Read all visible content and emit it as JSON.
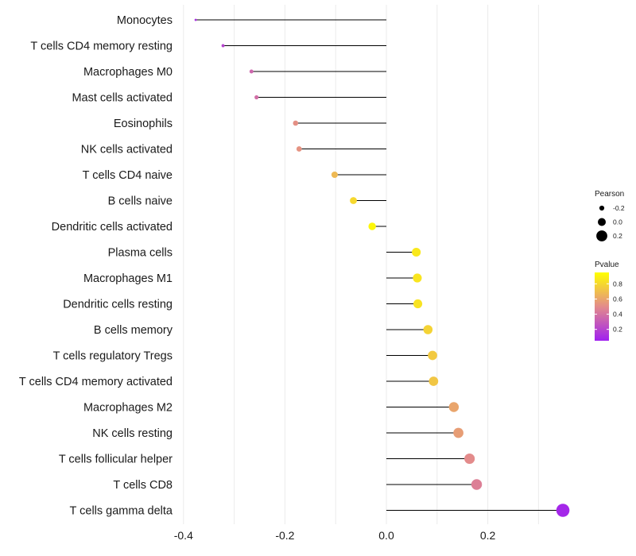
{
  "chart_data": {
    "type": "lollipop",
    "title": "",
    "xlabel": "",
    "ylabel": "",
    "xlim": [
      -0.4,
      0.35
    ],
    "xticks": [
      "-0.4",
      "-0.2",
      "0.0",
      "0.2"
    ],
    "xtick_values": [
      -0.4,
      -0.2,
      0.0,
      0.2
    ],
    "categories": [
      "Monocytes",
      "T cells CD4 memory resting",
      "Macrophages M0",
      "Mast cells activated",
      "Eosinophils",
      "NK cells activated",
      "T cells CD4 naive",
      "B cells naive",
      "Dendritic cells activated",
      "Plasma cells",
      "Macrophages M1",
      "Dendritic cells resting",
      "B cells memory",
      "T cells regulatory  Tregs",
      "T cells CD4 memory activated",
      "Macrophages M2",
      "NK cells resting",
      "T cells follicular helper",
      "T cells CD8",
      "T cells gamma delta"
    ],
    "pearson": [
      -0.376,
      -0.322,
      -0.266,
      -0.256,
      -0.179,
      -0.172,
      -0.102,
      -0.065,
      -0.028,
      0.059,
      0.061,
      0.062,
      0.082,
      0.091,
      0.093,
      0.133,
      0.142,
      0.164,
      0.178,
      0.348
    ],
    "pvalue": [
      0.12,
      0.2,
      0.35,
      0.38,
      0.52,
      0.53,
      0.68,
      0.8,
      0.92,
      0.86,
      0.85,
      0.84,
      0.78,
      0.74,
      0.73,
      0.6,
      0.57,
      0.5,
      0.45,
      0.08
    ],
    "legend_size": {
      "title": "Pearson",
      "labels": [
        "-0.2",
        "0.0",
        "0.2"
      ],
      "values": [
        -0.2,
        0.0,
        0.2
      ]
    },
    "legend_color": {
      "title": "Pvalue",
      "labels": [
        "0.8",
        "0.6",
        "0.4",
        "0.2"
      ],
      "values": [
        0.8,
        0.6,
        0.4,
        0.2
      ],
      "range": [
        0.05,
        0.95
      ],
      "low_color": "#a020f0",
      "mid_color": "#e38b8b",
      "high_color": "#ffff00"
    },
    "colors": {
      "segment": "#000000",
      "gridline": "#ebebeb"
    }
  }
}
